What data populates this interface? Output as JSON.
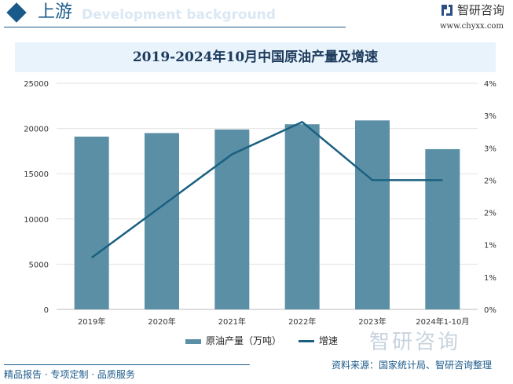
{
  "header": {
    "title": "上游",
    "bg_text": "Development background",
    "logo_text": "智研咨询",
    "logo_url": "www.chyxx.com"
  },
  "chart_data": {
    "type": "bar+line",
    "title": "2019-2024年10月中国原油产量及增速",
    "categories": [
      "2019年",
      "2020年",
      "2021年",
      "2022年",
      "2023年",
      "2024年1-10月"
    ],
    "series": [
      {
        "name": "原油产量（万吨）",
        "type": "bar",
        "axis": "left",
        "values": [
          19101,
          19492,
          19888,
          20467,
          20891,
          17714
        ]
      },
      {
        "name": "增速",
        "type": "line",
        "axis": "right",
        "values": [
          0.8,
          1.6,
          2.4,
          2.9,
          2.0,
          2.0
        ],
        "unit": "%"
      }
    ],
    "left_axis": {
      "ylim": [
        0,
        25000
      ],
      "ticks": [
        "0",
        "5000",
        "10000",
        "15000",
        "20000",
        "25000"
      ]
    },
    "right_axis": {
      "ylim": [
        0,
        3.5
      ],
      "ticks": [
        "0%",
        "1%",
        "1%",
        "2%",
        "2%",
        "3%",
        "3%",
        "4%"
      ]
    },
    "grid": true,
    "legend": "bottom",
    "colors": {
      "bar": "#5b8fa6",
      "line": "#1a6080"
    }
  },
  "watermark": "智研咨询",
  "footer": {
    "left": "精品报告 · 专项定制 · 品质服务",
    "source": "资料来源：国家统计局、智研咨询整理"
  }
}
